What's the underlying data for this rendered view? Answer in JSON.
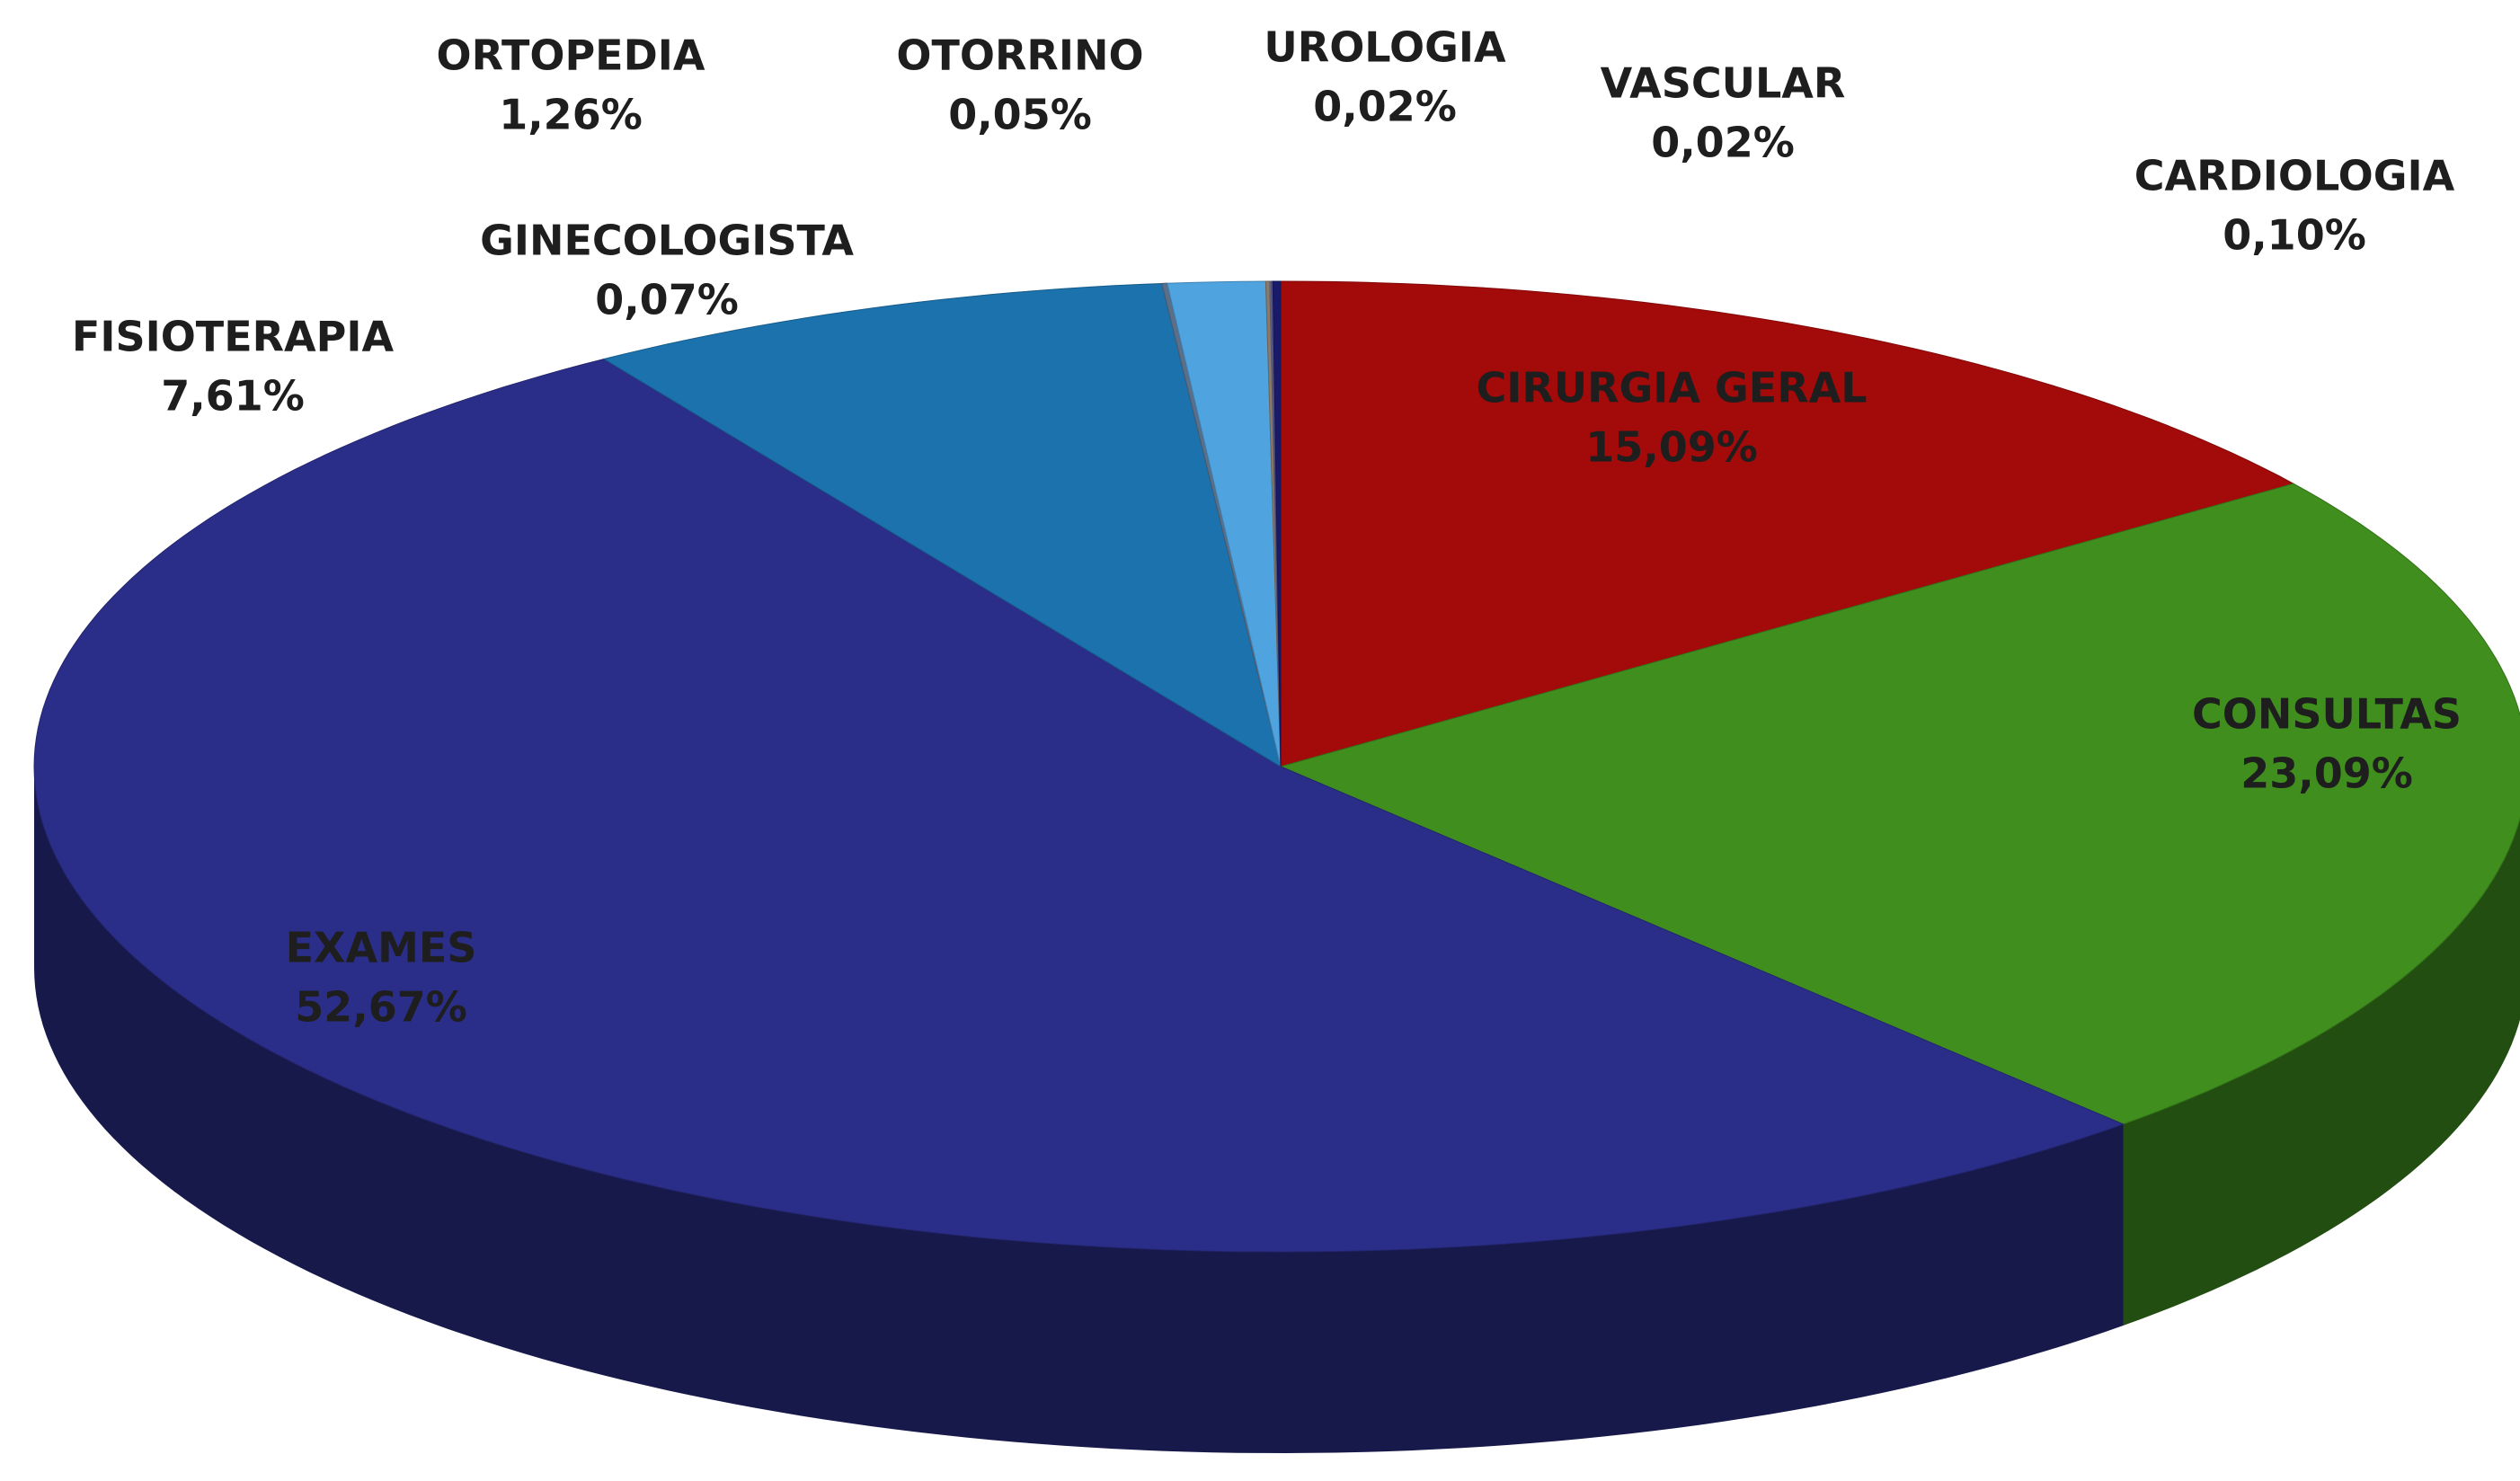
{
  "chart_data": {
    "type": "pie",
    "categories": [
      "CIRURGIA GERAL",
      "CONSULTAS",
      "EXAMES",
      "FISIOTERAPIA",
      "GINECOLOGISTA",
      "ORTOPEDIA",
      "OTORRINO",
      "UROLOGIA",
      "VASCULAR",
      "CARDIOLOGIA"
    ],
    "values": [
      15.09,
      23.09,
      52.67,
      7.61,
      0.07,
      1.26,
      0.05,
      0.02,
      0.02,
      0.1
    ],
    "value_labels": [
      "15,09%",
      "23,09%",
      "52,67%",
      "7,61%",
      "0,07%",
      "1,26%",
      "0,05%",
      "0,02%",
      "0,02%",
      "0,10%"
    ],
    "colors": [
      "#a30a0a",
      "#3f8e1e",
      "#2b2e88",
      "#1b72ad",
      "#5a6f8a",
      "#4fa3de",
      "#8a7a6a",
      "#6a6a9a",
      "#5a5a8a",
      "#1a1a6a"
    ],
    "three_d": true
  }
}
